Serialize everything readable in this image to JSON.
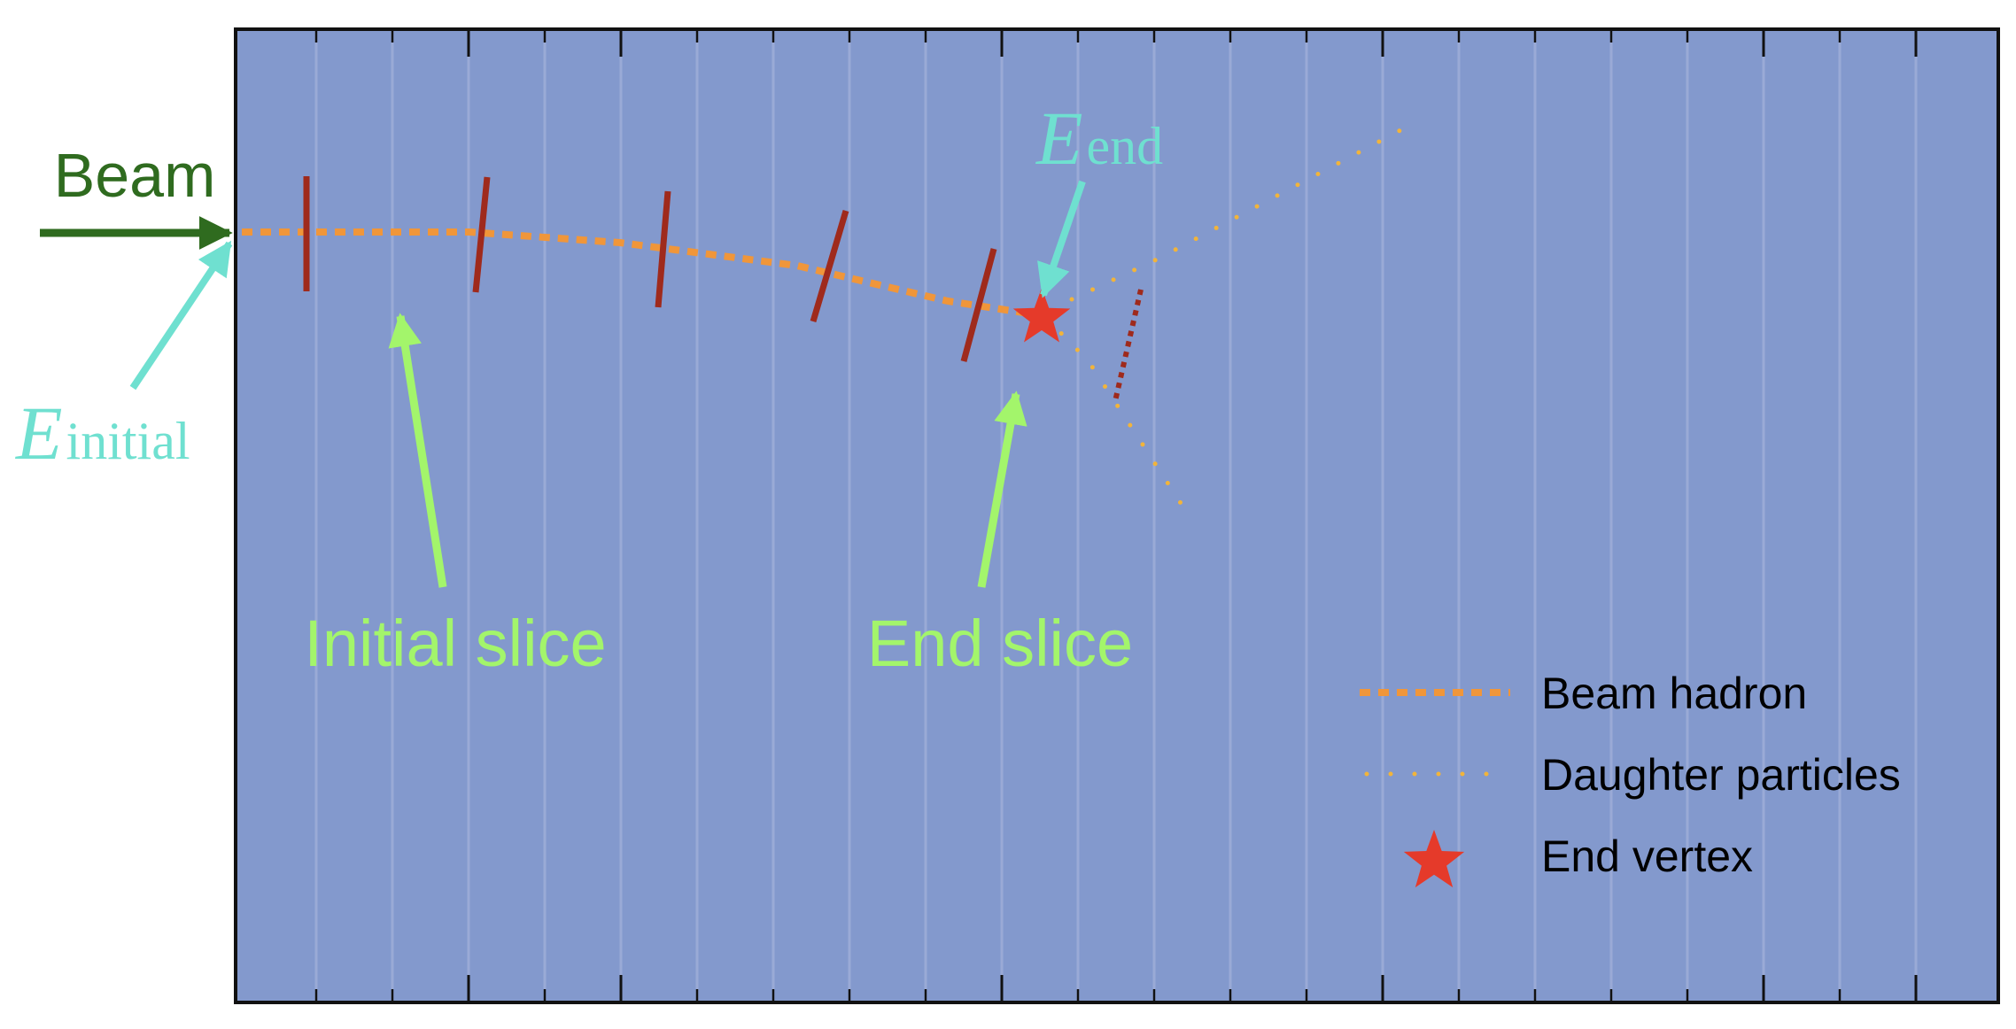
{
  "labels": {
    "beam": "Beam",
    "e_initial_symbol": "E",
    "e_initial_subscript": "initial",
    "e_end_symbol": "E",
    "e_end_subscript": "end",
    "initial_slice": "Initial slice",
    "end_slice": "End slice"
  },
  "legend": {
    "beam_hadron": "Beam hadron",
    "daughter_particles": "Daughter particles",
    "end_vertex": "End vertex"
  },
  "colors": {
    "background": "#8399cd",
    "divider": "#9aaad6",
    "frame": "#111111",
    "beam_arrow": "#2f6b1f",
    "energy_label": "#6fe0d0",
    "slice_label": "#a3f56b",
    "beam_track": "#f0963a",
    "daughter_track": "#f2b43a",
    "slice_marker": "#9f2a1c",
    "end_vertex": "#e53a2a"
  },
  "icons": {
    "end_vertex": "star-icon"
  }
}
